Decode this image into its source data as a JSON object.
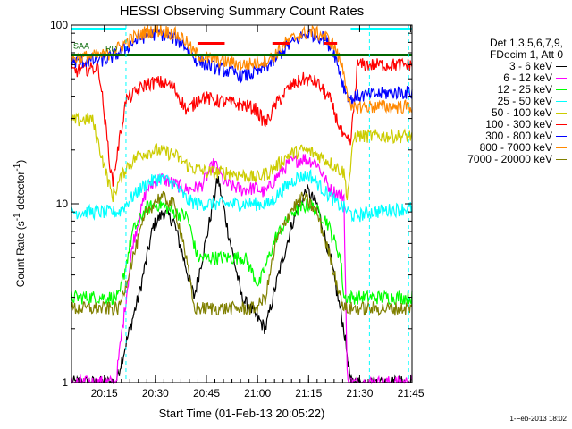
{
  "chart_data": {
    "type": "line",
    "title": "HESSI Observing Summary Count Rates",
    "xlabel": "Start Time (01-Feb-13 20:05:22)",
    "ylabel_main": "Count Rate (s",
    "ylabel_sup1": "-1",
    "ylabel_mid": " detector",
    "ylabel_sup2": "-1",
    "ylabel_end": ")",
    "timestamp": "1-Feb-2013 18:02",
    "y_scale": "log",
    "ylim": [
      1,
      100
    ],
    "xlim_minutes": [
      0,
      100
    ],
    "x_ticks": [
      {
        "m": 9.63,
        "label": "20:15"
      },
      {
        "m": 24.63,
        "label": "20:30"
      },
      {
        "m": 39.63,
        "label": "20:45"
      },
      {
        "m": 54.63,
        "label": "21:00"
      },
      {
        "m": 69.63,
        "label": "21:15"
      },
      {
        "m": 84.63,
        "label": "21:30"
      },
      {
        "m": 99.63,
        "label": "21:45"
      }
    ],
    "y_tick_labels": [
      {
        "v": 1,
        "label": "1"
      },
      {
        "v": 10,
        "label": "10"
      },
      {
        "v": 100,
        "label": "100"
      }
    ],
    "legend_header": [
      "Det 1,3,5,6,7,9,",
      "FDecim 1, Att 0"
    ],
    "series": [
      {
        "name": "3 - 6 keV",
        "color": "#000000",
        "points": [
          [
            0,
            1
          ],
          [
            13,
            1
          ],
          [
            20,
            3.2
          ],
          [
            24,
            7.5
          ],
          [
            27,
            9
          ],
          [
            30,
            8
          ],
          [
            36,
            3
          ],
          [
            40,
            7
          ],
          [
            43,
            14
          ],
          [
            46,
            7
          ],
          [
            50,
            3
          ],
          [
            57,
            2
          ],
          [
            60,
            3.5
          ],
          [
            65,
            8
          ],
          [
            69,
            12
          ],
          [
            72,
            10
          ],
          [
            76,
            5
          ],
          [
            80,
            2
          ],
          [
            82,
            1
          ],
          [
            88,
            1
          ],
          [
            89,
            1
          ],
          [
            100,
            1
          ]
        ]
      },
      {
        "name": "6 - 12 keV",
        "color": "#ff00ff",
        "points": [
          [
            0,
            1
          ],
          [
            13,
            1
          ],
          [
            18,
            6
          ],
          [
            22,
            12
          ],
          [
            26,
            14
          ],
          [
            30,
            13
          ],
          [
            34,
            12
          ],
          [
            38,
            12.5
          ],
          [
            42,
            17
          ],
          [
            45,
            13
          ],
          [
            50,
            12
          ],
          [
            54,
            12.3
          ],
          [
            57,
            11.5
          ],
          [
            60,
            14
          ],
          [
            64,
            17
          ],
          [
            68,
            18
          ],
          [
            72,
            17
          ],
          [
            76,
            12
          ],
          [
            80,
            11
          ],
          [
            81,
            1
          ],
          [
            100,
            1
          ]
        ]
      },
      {
        "name": "12 - 25 keV",
        "color": "#00ff00",
        "points": [
          [
            0,
            3
          ],
          [
            14,
            3
          ],
          [
            18,
            7
          ],
          [
            22,
            9.5
          ],
          [
            26,
            10
          ],
          [
            30,
            9
          ],
          [
            34,
            8.5
          ],
          [
            37,
            5
          ],
          [
            44,
            5
          ],
          [
            51,
            5
          ],
          [
            55,
            3.5
          ],
          [
            60,
            6.5
          ],
          [
            65,
            9
          ],
          [
            70,
            10
          ],
          [
            75,
            8
          ],
          [
            79,
            5
          ],
          [
            80,
            3
          ],
          [
            82,
            3
          ],
          [
            86,
            3
          ],
          [
            100,
            3
          ]
        ]
      },
      {
        "name": "25 - 50 keV",
        "color": "#00ffff",
        "points": [
          [
            0,
            9
          ],
          [
            14,
            9
          ],
          [
            18,
            11
          ],
          [
            22,
            13
          ],
          [
            26,
            14
          ],
          [
            30,
            13
          ],
          [
            34,
            10.5
          ],
          [
            37,
            10
          ],
          [
            44,
            10
          ],
          [
            54,
            10
          ],
          [
            58,
            10
          ],
          [
            62,
            12
          ],
          [
            66,
            14
          ],
          [
            70,
            14.5
          ],
          [
            74,
            12
          ],
          [
            78,
            10
          ],
          [
            80,
            9.5
          ],
          [
            83,
            8.5
          ],
          [
            88,
            9
          ],
          [
            100,
            9.5
          ]
        ]
      },
      {
        "name": "50 - 100 keV",
        "color": "#cccc00",
        "points": [
          [
            0,
            29
          ],
          [
            6,
            30
          ],
          [
            12,
            11
          ],
          [
            16,
            16
          ],
          [
            20,
            19
          ],
          [
            25,
            20
          ],
          [
            30,
            19
          ],
          [
            35,
            16
          ],
          [
            40,
            15
          ],
          [
            46,
            15
          ],
          [
            54,
            14
          ],
          [
            58,
            15
          ],
          [
            64,
            19
          ],
          [
            68,
            20
          ],
          [
            72,
            19
          ],
          [
            76,
            17
          ],
          [
            80,
            15
          ],
          [
            81,
            11
          ],
          [
            83,
            24
          ],
          [
            90,
            24
          ],
          [
            100,
            24
          ]
        ]
      },
      {
        "name": "100 - 300 keV",
        "color": "#ff0000",
        "points": [
          [
            0,
            55
          ],
          [
            8,
            58
          ],
          [
            12,
            13
          ],
          [
            16,
            38
          ],
          [
            22,
            47
          ],
          [
            26,
            48
          ],
          [
            30,
            45
          ],
          [
            34,
            33
          ],
          [
            38,
            40
          ],
          [
            42,
            38
          ],
          [
            50,
            36
          ],
          [
            54,
            34
          ],
          [
            57,
            28
          ],
          [
            60,
            36
          ],
          [
            64,
            45
          ],
          [
            68,
            50
          ],
          [
            72,
            48
          ],
          [
            76,
            38
          ],
          [
            80,
            23
          ],
          [
            82,
            22
          ],
          [
            84,
            60
          ],
          [
            94,
            60
          ],
          [
            100,
            60
          ]
        ]
      },
      {
        "name": "300 - 800 keV",
        "color": "#0000ff",
        "points": [
          [
            0,
            62
          ],
          [
            10,
            64
          ],
          [
            14,
            70
          ],
          [
            18,
            80
          ],
          [
            22,
            88
          ],
          [
            26,
            90
          ],
          [
            30,
            85
          ],
          [
            33,
            78
          ],
          [
            36,
            65
          ],
          [
            40,
            60
          ],
          [
            46,
            55
          ],
          [
            51,
            52
          ],
          [
            55,
            55
          ],
          [
            59,
            62
          ],
          [
            63,
            75
          ],
          [
            67,
            85
          ],
          [
            70,
            90
          ],
          [
            74,
            85
          ],
          [
            77,
            72
          ],
          [
            80,
            45
          ],
          [
            82,
            38
          ],
          [
            84,
            40
          ],
          [
            94,
            42
          ],
          [
            100,
            42
          ]
        ]
      },
      {
        "name": "800 - 7000 keV",
        "color": "#ff8800",
        "points": [
          [
            0,
            65
          ],
          [
            10,
            68
          ],
          [
            14,
            75
          ],
          [
            18,
            85
          ],
          [
            22,
            92
          ],
          [
            26,
            94
          ],
          [
            30,
            90
          ],
          [
            33,
            84
          ],
          [
            36,
            70
          ],
          [
            40,
            65
          ],
          [
            46,
            62
          ],
          [
            51,
            60
          ],
          [
            55,
            62
          ],
          [
            59,
            66
          ],
          [
            63,
            80
          ],
          [
            67,
            88
          ],
          [
            70,
            92
          ],
          [
            74,
            88
          ],
          [
            77,
            78
          ],
          [
            80,
            55
          ],
          [
            82,
            33
          ],
          [
            84,
            35
          ],
          [
            94,
            35
          ],
          [
            100,
            35
          ]
        ]
      },
      {
        "name": "7000 - 20000 keV",
        "color": "#808000",
        "points": [
          [
            0,
            2.6
          ],
          [
            14,
            2.6
          ],
          [
            18,
            5
          ],
          [
            22,
            9
          ],
          [
            26,
            11
          ],
          [
            30,
            10
          ],
          [
            33,
            6
          ],
          [
            36,
            2.6
          ],
          [
            44,
            2.6
          ],
          [
            54,
            2.6
          ],
          [
            57,
            3
          ],
          [
            60,
            6
          ],
          [
            64,
            9
          ],
          [
            68,
            11
          ],
          [
            72,
            9
          ],
          [
            76,
            5
          ],
          [
            80,
            2.6
          ],
          [
            84,
            2.6
          ],
          [
            100,
            2.6
          ]
        ]
      }
    ],
    "flag_bars": [
      {
        "label": "SAA",
        "color": "#00ffff",
        "x_range": [
          0,
          16
        ],
        "y": 95
      },
      {
        "label": "",
        "color": "#00ffff",
        "x_range": [
          82,
          100
        ],
        "y": 95
      },
      {
        "label": "RD",
        "color": "#006600",
        "x_range": [
          0,
          100
        ],
        "y": 68
      },
      {
        "label": "",
        "color": "#ff0000",
        "x_range": [
          37,
          45
        ],
        "y": 79
      },
      {
        "label": "",
        "color": "#ff0000",
        "x_range": [
          59,
          64
        ],
        "y": 79
      },
      {
        "label": "",
        "color": "#ff0000",
        "x_range": [
          74,
          78
        ],
        "y": 79
      }
    ],
    "vlines_dashed": [
      16,
      87.5,
      99
    ],
    "grid": false,
    "legend_position": "right"
  }
}
